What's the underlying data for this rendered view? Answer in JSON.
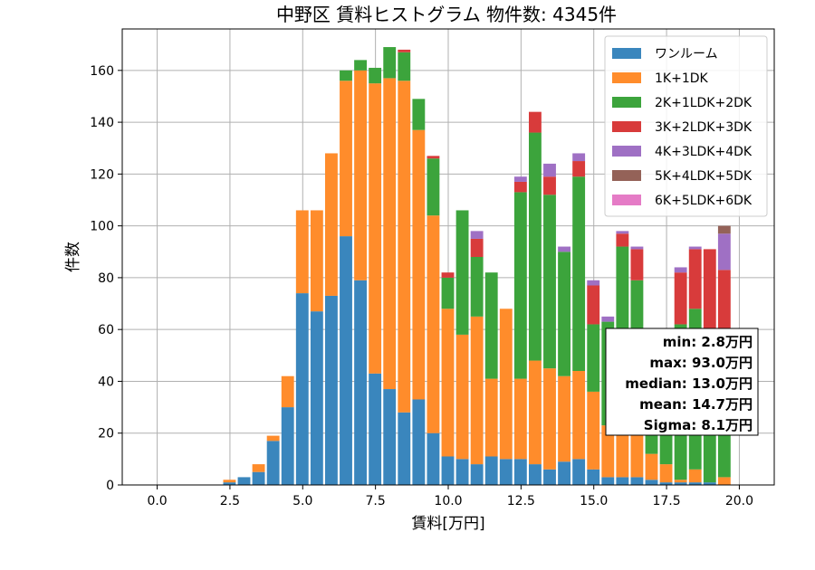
{
  "chart_data": {
    "type": "bar",
    "stacked": true,
    "title": "中野区 賃料ヒストグラム  物件数: 4345件",
    "xlabel": "賃料[万円]",
    "ylabel": "件数",
    "xlim": [
      -1.2,
      21.2
    ],
    "ylim": [
      0,
      176
    ],
    "xticks": [
      0,
      2.5,
      5,
      7.5,
      10,
      12.5,
      15,
      17.5,
      20
    ],
    "xtick_labels": [
      "0.0",
      "2.5",
      "5.0",
      "7.5",
      "10.0",
      "12.5",
      "15.0",
      "17.5",
      "20.0"
    ],
    "yticks": [
      0,
      20,
      40,
      60,
      80,
      100,
      120,
      140,
      160
    ],
    "ytick_labels": [
      "0",
      "20",
      "40",
      "60",
      "80",
      "100",
      "120",
      "140",
      "160"
    ],
    "grid": true,
    "legend_position": "top-right",
    "bin_width": 0.5,
    "bin_starts": [
      2.25,
      2.75,
      3.25,
      3.75,
      4.25,
      4.75,
      5.25,
      5.75,
      6.25,
      6.75,
      7.25,
      7.75,
      8.25,
      8.75,
      9.25,
      9.75,
      10.25,
      10.75,
      11.25,
      11.75,
      12.25,
      12.75,
      13.25,
      13.75,
      14.25,
      14.75,
      15.25,
      15.75,
      16.25,
      16.75,
      17.25,
      17.75,
      18.25,
      18.75,
      19.25
    ],
    "series": [
      {
        "name": "ワンルーム",
        "color": "#3a86bd",
        "values": [
          1,
          3,
          5,
          17,
          30,
          74,
          67,
          73,
          96,
          79,
          43,
          37,
          28,
          33,
          20,
          11,
          10,
          8,
          11,
          10,
          10,
          8,
          6,
          9,
          10,
          6,
          3,
          3,
          3,
          2,
          1,
          1,
          1,
          1,
          0
        ]
      },
      {
        "name": "1K+1DK",
        "color": "#ff8c2b",
        "values": [
          1,
          0,
          3,
          2,
          12,
          32,
          39,
          55,
          60,
          81,
          112,
          120,
          128,
          104,
          84,
          57,
          48,
          57,
          30,
          58,
          31,
          40,
          39,
          33,
          34,
          30,
          20,
          20,
          20,
          10,
          7,
          1,
          5,
          0,
          3
        ]
      },
      {
        "name": "2K+1LDK+2DK",
        "color": "#3ca43c",
        "values": [
          0,
          0,
          0,
          0,
          0,
          0,
          0,
          0,
          4,
          4,
          6,
          12,
          11,
          12,
          22,
          12,
          48,
          23,
          41,
          0,
          72,
          88,
          67,
          48,
          75,
          26,
          40,
          69,
          56,
          25,
          18,
          60,
          62,
          23,
          20
        ]
      },
      {
        "name": "3K+2LDK+3DK",
        "color": "#d83b3b",
        "values": [
          0,
          0,
          0,
          0,
          0,
          0,
          0,
          0,
          0,
          0,
          0,
          0,
          1,
          0,
          1,
          2,
          0,
          7,
          0,
          0,
          4,
          8,
          7,
          0,
          6,
          15,
          0,
          5,
          12,
          20,
          20,
          20,
          23,
          67,
          60
        ]
      },
      {
        "name": "4K+3LDK+4DK",
        "color": "#9f70c4",
        "values": [
          0,
          0,
          0,
          0,
          0,
          0,
          0,
          0,
          0,
          0,
          0,
          0,
          0,
          0,
          0,
          0,
          0,
          3,
          0,
          0,
          2,
          0,
          5,
          2,
          3,
          2,
          2,
          1,
          1,
          2,
          3,
          2,
          1,
          0,
          14
        ]
      },
      {
        "name": "5K+4LDK+5DK",
        "color": "#946258",
        "values": [
          0,
          0,
          0,
          0,
          0,
          0,
          0,
          0,
          0,
          0,
          0,
          0,
          0,
          0,
          0,
          0,
          0,
          0,
          0,
          0,
          0,
          0,
          0,
          0,
          0,
          0,
          0,
          0,
          0,
          0,
          0,
          0,
          0,
          0,
          3
        ]
      },
      {
        "name": "6K+5LDK+6DK",
        "color": "#e57bc6",
        "values": [
          0,
          0,
          0,
          0,
          0,
          0,
          0,
          0,
          0,
          0,
          0,
          0,
          0,
          0,
          0,
          0,
          0,
          0,
          0,
          0,
          0,
          0,
          0,
          0,
          0,
          0,
          0,
          0,
          0,
          0,
          0,
          0,
          0,
          0,
          0
        ]
      }
    ],
    "stats_box": {
      "position": "right",
      "lines": [
        "min: 2.8万円",
        "max: 93.0万円",
        "median: 13.0万円",
        "mean: 14.7万円",
        "Sigma: 8.1万円"
      ]
    }
  }
}
